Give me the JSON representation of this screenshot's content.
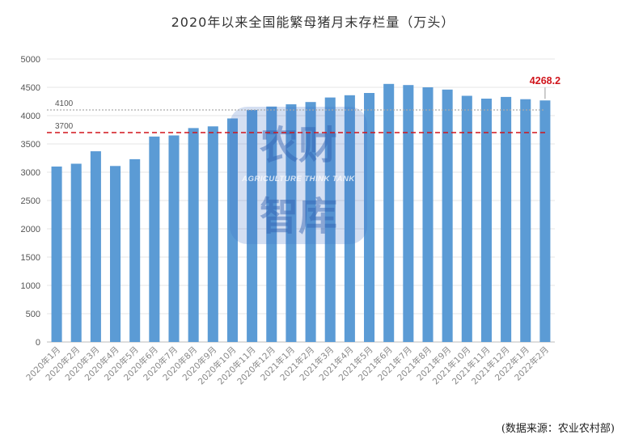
{
  "chart_data": {
    "type": "bar",
    "title": "2020年以来全国能繁母猪月末存栏量（万头）",
    "categories": [
      "2020年1月",
      "2020年2月",
      "2020年3月",
      "2020年4月",
      "2020年5月",
      "2020年6月",
      "2020年7月",
      "2020年8月",
      "2020年9月",
      "2020年10月",
      "2020年11月",
      "2020年12月",
      "2021年1月",
      "2021年2月",
      "2021年3月",
      "2021年4月",
      "2021年5月",
      "2021年6月",
      "2021年7月",
      "2021年8月",
      "2021年9月",
      "2021年10月",
      "2021年11月",
      "2021年12月",
      "2022年1月",
      "2022年2月"
    ],
    "values": [
      3100,
      3150,
      3370,
      3110,
      3230,
      3630,
      3650,
      3780,
      3810,
      3950,
      4100,
      4160,
      4200,
      4240,
      4320,
      4360,
      4400,
      4560,
      4540,
      4500,
      4460,
      4350,
      4300,
      4330,
      4290,
      4268.2
    ],
    "ylim": [
      0,
      5000
    ],
    "yticks": [
      0,
      500,
      1000,
      1500,
      2000,
      2500,
      3000,
      3500,
      4000,
      4500,
      5000
    ],
    "bar_color": "#5b9bd5",
    "reference_lines": [
      {
        "value": 4100,
        "label": "4100",
        "color": "#aaaaaa",
        "style": "dashed"
      },
      {
        "value": 3700,
        "label": "3700",
        "color": "#d0141b",
        "style": "dashed"
      }
    ],
    "annotation": {
      "label": "4268.2",
      "color": "#d0141b"
    },
    "grid": true
  },
  "watermark": {
    "line1": "农财",
    "line2": "AGRICULTURE THINK TANK",
    "line3": "智库"
  },
  "source_note": "(数据来源：农业农村部)"
}
